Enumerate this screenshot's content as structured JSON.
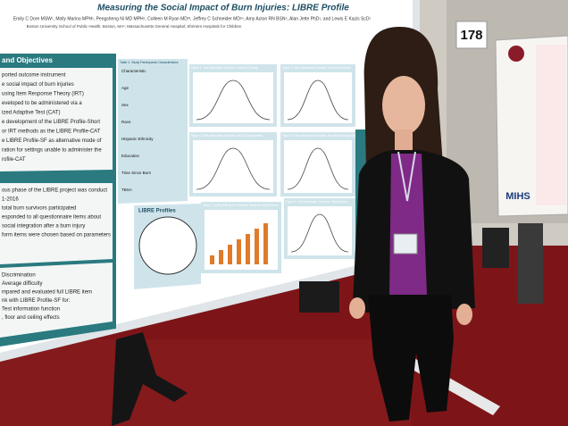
{
  "poster": {
    "title": "Measuring the Social Impact of Burn Injuries: LIBRE Profile",
    "authors": "Emily C Dore MSW¹, Molly Marino MPH¹, Pengsheng Ni MD MPH¹, Colleen M Ryan MD²³, Jeffrey C Schneider MD²⁴, Amy Acton RN BSN⁵, Alan Jette PhD¹, and Lewis E Kazis ScD¹",
    "affiliation": "Boston University School of Public Health, Boston, MA¹; Massachusetts General Hospital; Shriners Hospitals for Children",
    "left_heading": "and Objectives",
    "left_text": [
      "ported outcome instrument",
      "e social impact of burn injuries",
      "using Item Response Theory (IRT)",
      "eveloped to be administered via a",
      "ized Adaptive Test (CAT)",
      "e development of the LIBRE Profile-Short",
      "or IRT methods as the LIBRE Profile-CAT",
      "e LIBRE Profile-SF as alternative mode of",
      "ration for settings unable to administer the",
      "rofile-CAT"
    ],
    "methods_text": [
      "ous phase of the LIBRE project was conduct",
      "1-2016",
      "total burn survivors participated",
      "esponded to all questionnaire items about",
      "social integration after a burn injury",
      "form items were chosen based on parameters"
    ],
    "results_text": [
      "Discrimination",
      "Average difficulty",
      "mpared and evaluated full LIBRE item",
      "nk with LIBRE Profile-SF for:",
      "Test information function",
      ", floor and ceiling effects"
    ],
    "table_caption": "Table 1. Study Participants Characteristics",
    "table_rows": [
      "Characteristic",
      "Age",
      "Sex",
      "Race",
      "Hispanic Ethnicity",
      "Education",
      "Time Since Burn",
      "TBSA"
    ],
    "profiles_label": "LIBRE Profiles",
    "figure_labels": [
      "Figure 1. Test Information Function: Friends & Family",
      "Figure 2. Test Information Function: Social Interactions",
      "Figure 4. Test Information Function: Work & Employment",
      "Figure 5. Test Information Function: Romantic Relationships",
      "Table 2. Ceiling Effects for Full Bank Items and Short Forms",
      "Figure 6. Test Information Function: Family Roles"
    ]
  },
  "booth_number": "178",
  "side_poster": {
    "logo": "MIHS"
  }
}
